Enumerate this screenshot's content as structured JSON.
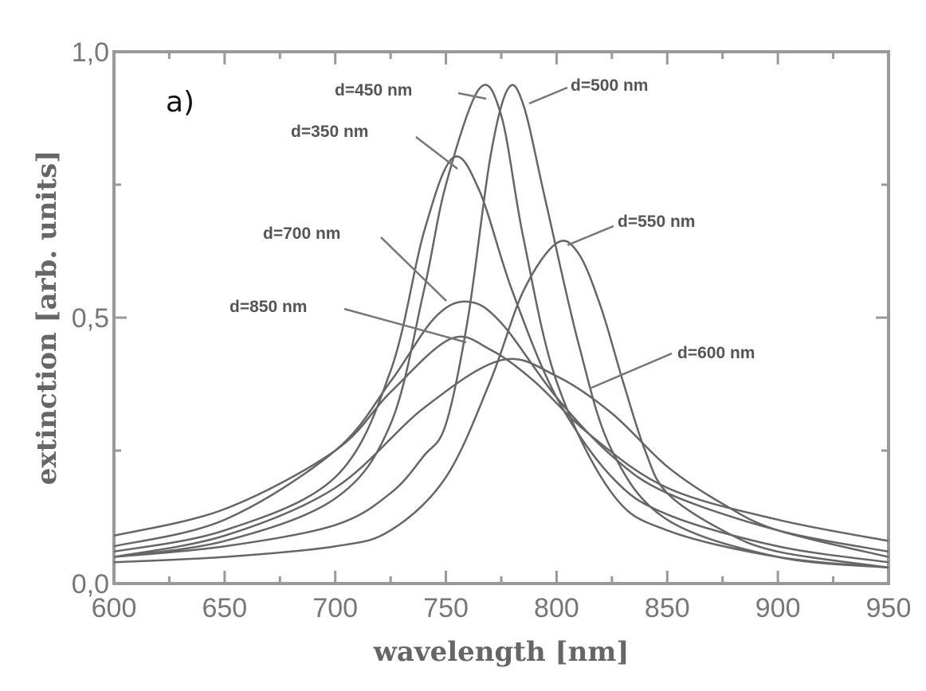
{
  "chart_data": {
    "type": "line",
    "panel_label": "a)",
    "xlabel": "wavelength [nm]",
    "ylabel": "extinction [arb. units]",
    "xlim": [
      600,
      950
    ],
    "ylim": [
      0,
      1
    ],
    "x_ticks": [
      600,
      650,
      700,
      750,
      800,
      850,
      900,
      950
    ],
    "x_tick_labels": [
      "600",
      "650",
      "700",
      "750",
      "800",
      "850",
      "900",
      "950"
    ],
    "y_ticks": [
      0,
      0.5,
      1
    ],
    "y_tick_labels": [
      "0,0",
      "0,5",
      "1,0"
    ],
    "grid": false,
    "line_color": "#666666",
    "series": [
      {
        "name": "d=350 nm",
        "x": [
          600,
          650,
          700,
          725,
          740,
          753,
          765,
          780,
          800,
          825,
          850,
          900,
          950
        ],
        "y": [
          0.06,
          0.1,
          0.2,
          0.4,
          0.66,
          0.8,
          0.74,
          0.55,
          0.35,
          0.2,
          0.13,
          0.07,
          0.04
        ]
      },
      {
        "name": "d=450 nm",
        "x": [
          600,
          650,
          700,
          725,
          740,
          750,
          765,
          775,
          785,
          800,
          825,
          850,
          900,
          950
        ],
        "y": [
          0.05,
          0.08,
          0.16,
          0.3,
          0.55,
          0.75,
          0.93,
          0.88,
          0.65,
          0.38,
          0.17,
          0.1,
          0.05,
          0.03
        ]
      },
      {
        "name": "d=500 nm",
        "x": [
          600,
          650,
          700,
          725,
          740,
          750,
          760,
          770,
          778,
          785,
          795,
          810,
          825,
          850,
          900,
          950
        ],
        "y": [
          0.05,
          0.07,
          0.11,
          0.17,
          0.24,
          0.3,
          0.5,
          0.8,
          0.93,
          0.9,
          0.72,
          0.45,
          0.25,
          0.12,
          0.05,
          0.03
        ]
      },
      {
        "name": "d=550 nm",
        "x": [
          600,
          650,
          700,
          725,
          750,
          770,
          785,
          800,
          810,
          820,
          830,
          840,
          850,
          875,
          900,
          950
        ],
        "y": [
          0.04,
          0.05,
          0.07,
          0.1,
          0.2,
          0.38,
          0.55,
          0.64,
          0.62,
          0.52,
          0.38,
          0.25,
          0.17,
          0.1,
          0.06,
          0.03
        ]
      },
      {
        "name": "d=600 nm",
        "x": [
          600,
          650,
          700,
          740,
          775,
          800,
          825,
          850,
          875,
          900,
          950
        ],
        "y": [
          0.05,
          0.09,
          0.18,
          0.33,
          0.42,
          0.39,
          0.32,
          0.22,
          0.15,
          0.1,
          0.05
        ]
      },
      {
        "name": "d=700 nm",
        "x": [
          600,
          650,
          700,
          725,
          745,
          760,
          775,
          800,
          825,
          850,
          900,
          950
        ],
        "y": [
          0.07,
          0.12,
          0.25,
          0.38,
          0.5,
          0.53,
          0.49,
          0.35,
          0.24,
          0.17,
          0.1,
          0.06
        ]
      },
      {
        "name": "d=850 nm",
        "x": [
          600,
          650,
          700,
          725,
          752,
          770,
          790,
          815,
          850,
          900,
          950
        ],
        "y": [
          0.09,
          0.14,
          0.25,
          0.36,
          0.46,
          0.44,
          0.38,
          0.28,
          0.18,
          0.12,
          0.08
        ]
      }
    ]
  }
}
